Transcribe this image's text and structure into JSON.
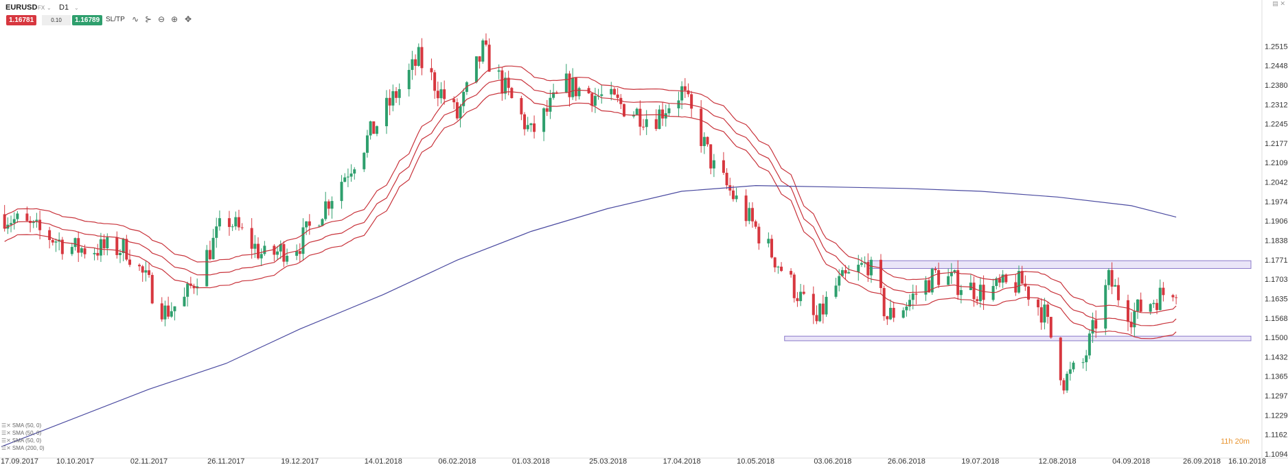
{
  "toolbar": {
    "symbol": "EURUSD",
    "symbol_type": "FX",
    "timeframe": "D1",
    "bid": "1.16781",
    "spread": "0.10",
    "ask": "1.16789",
    "sltp_label": "SL/TP",
    "icons": [
      "line-chart-icon",
      "indicators-icon",
      "zoom-out-icon",
      "zoom-in-icon",
      "crosshair-icon"
    ]
  },
  "window_icons": [
    "minimize-icon",
    "close-icon"
  ],
  "countdown": "11h 20m",
  "indicators": [
    {
      "label": "SMA (50, 0)"
    },
    {
      "label": "SMA (50, 0)"
    },
    {
      "label": "SMA (50, 0)"
    },
    {
      "label": "SMA (200, 0)"
    }
  ],
  "colors": {
    "bull": "#2e9f6d",
    "bear": "#d7373f",
    "sma50": "#c8323a",
    "sma200": "#4a4aa0",
    "zone_fill": "#e6e0f7",
    "zone_stroke": "#8a79c9",
    "countdown": "#e8932e"
  },
  "chart_data": {
    "type": "candlestick",
    "instrument": "EURUSD",
    "timeframe": "D1",
    "ylim": [
      1.10944,
      1.25835
    ],
    "y_ticks": [
      "1.25158",
      "1.24481",
      "1.23804",
      "1.23127",
      "1.22450",
      "1.21773",
      "1.21097",
      "1.20420",
      "1.19743",
      "1.19066",
      "1.18389",
      "1.17713",
      "1.17036",
      "1.16359",
      "1.15682",
      "1.15005",
      "1.14328",
      "1.13652",
      "1.12975",
      "1.12298",
      "1.11621",
      "1.10944"
    ],
    "x_ticks": [
      "17.09.2017",
      "10.10.2017",
      "02.11.2017",
      "26.11.2017",
      "19.12.2017",
      "14.01.2018",
      "06.02.2018",
      "01.03.2018",
      "25.03.2018",
      "17.04.2018",
      "10.05.2018",
      "03.06.2018",
      "26.06.2018",
      "19.07.2018",
      "12.08.2018",
      "04.09.2018",
      "26.09.2018",
      "16.10.2018"
    ],
    "price_path": [
      {
        "date": "17.09.2017",
        "price": 1.193
      },
      {
        "date": "10.10.2017",
        "price": 1.181
      },
      {
        "date": "26.10.2017",
        "price": 1.181
      },
      {
        "date": "07.11.2017",
        "price": 1.159
      },
      {
        "date": "13.11.2017",
        "price": 1.163
      },
      {
        "date": "26.11.2017",
        "price": 1.192
      },
      {
        "date": "08.12.2017",
        "price": 1.178
      },
      {
        "date": "19.12.2017",
        "price": 1.183
      },
      {
        "date": "01.01.2018",
        "price": 1.205
      },
      {
        "date": "14.01.2018",
        "price": 1.228
      },
      {
        "date": "25.01.2018",
        "price": 1.247
      },
      {
        "date": "06.02.2018",
        "price": 1.227
      },
      {
        "date": "14.02.2018",
        "price": 1.25
      },
      {
        "date": "01.03.2018",
        "price": 1.221
      },
      {
        "date": "12.03.2018",
        "price": 1.238
      },
      {
        "date": "25.03.2018",
        "price": 1.233
      },
      {
        "date": "08.04.2018",
        "price": 1.226
      },
      {
        "date": "17.04.2018",
        "price": 1.236
      },
      {
        "date": "27.04.2018",
        "price": 1.209
      },
      {
        "date": "10.05.2018",
        "price": 1.188
      },
      {
        "date": "29.05.2018",
        "price": 1.155
      },
      {
        "date": "03.06.2018",
        "price": 1.167
      },
      {
        "date": "14.06.2018",
        "price": 1.176
      },
      {
        "date": "20.06.2018",
        "price": 1.157
      },
      {
        "date": "26.06.2018",
        "price": 1.162
      },
      {
        "date": "05.07.2018",
        "price": 1.172
      },
      {
        "date": "19.07.2018",
        "price": 1.166
      },
      {
        "date": "01.08.2018",
        "price": 1.169
      },
      {
        "date": "08.08.2018",
        "price": 1.158
      },
      {
        "date": "14.08.2018",
        "price": 1.135
      },
      {
        "date": "20.08.2018",
        "price": 1.141
      },
      {
        "date": "28.08.2018",
        "price": 1.17
      },
      {
        "date": "04.09.2018",
        "price": 1.158
      },
      {
        "date": "12.09.2018",
        "price": 1.164
      },
      {
        "date": "18.09.2018",
        "price": 1.168
      }
    ],
    "zones": [
      {
        "from": "14.06.2018",
        "to": "30.11.2018",
        "low": 1.1741,
        "high": 1.1768
      },
      {
        "from": "19.05.2018",
        "to": "30.11.2018",
        "low": 1.1489,
        "high": 1.1505
      }
    ],
    "sma200_path": [
      {
        "date": "17.09.2017",
        "price": 1.112
      },
      {
        "date": "02.11.2017",
        "price": 1.132
      },
      {
        "date": "26.11.2017",
        "price": 1.141
      },
      {
        "date": "19.12.2017",
        "price": 1.153
      },
      {
        "date": "14.01.2018",
        "price": 1.165
      },
      {
        "date": "06.02.2018",
        "price": 1.177
      },
      {
        "date": "01.03.2018",
        "price": 1.187
      },
      {
        "date": "25.03.2018",
        "price": 1.195
      },
      {
        "date": "17.04.2018",
        "price": 1.201
      },
      {
        "date": "10.05.2018",
        "price": 1.203
      },
      {
        "date": "03.06.2018",
        "price": 1.2025
      },
      {
        "date": "26.06.2018",
        "price": 1.202
      },
      {
        "date": "19.07.2018",
        "price": 1.201
      },
      {
        "date": "12.08.2018",
        "price": 1.199
      },
      {
        "date": "04.09.2018",
        "price": 1.196
      },
      {
        "date": "18.09.2018",
        "price": 1.192
      }
    ]
  }
}
